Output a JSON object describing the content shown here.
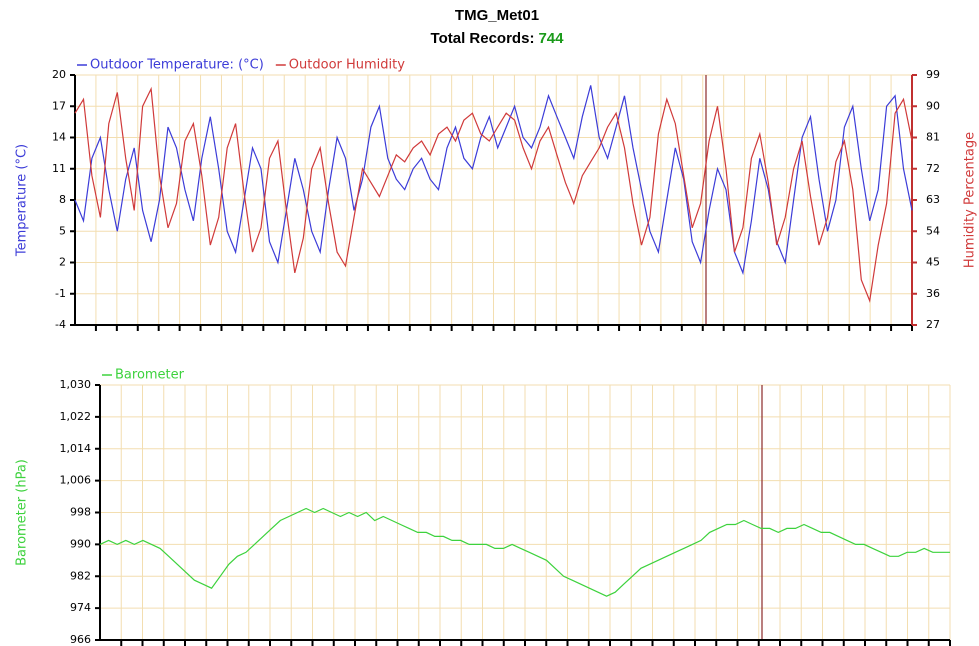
{
  "chart_data": [
    {
      "type": "line",
      "title": "TMG_Met01",
      "subtitle": "Total Records:",
      "total_records": 744,
      "y_label": "Temperature (°C)",
      "y2_label": "Humidity Percentage",
      "ylim": [
        -4,
        20
      ],
      "yticks": [
        -4,
        -1,
        2,
        5,
        8,
        11,
        14,
        17,
        20
      ],
      "y2lim": [
        27,
        99
      ],
      "y2ticks": [
        27,
        36,
        45,
        54,
        63,
        72,
        81,
        90,
        99
      ],
      "grid": true,
      "series": [
        {
          "name": "Outdoor Temperature: (°C)",
          "color": "#3c3cd8",
          "values": [
            8,
            6,
            12,
            14,
            9,
            5,
            10,
            13,
            7,
            4,
            8,
            15,
            13,
            9,
            6,
            12,
            16,
            11,
            5,
            3,
            8,
            13,
            11,
            4,
            2,
            7,
            12,
            9,
            5,
            3,
            9,
            14,
            12,
            7,
            10,
            15,
            17,
            12,
            10,
            9,
            11,
            12,
            10,
            9,
            13,
            15,
            12,
            11,
            14,
            16,
            13,
            15,
            17,
            14,
            13,
            15,
            18,
            16,
            14,
            12,
            16,
            19,
            14,
            12,
            15,
            18,
            13,
            9,
            5,
            3,
            8,
            13,
            10,
            4,
            2,
            7,
            11,
            9,
            3,
            1,
            6,
            12,
            9,
            4,
            2,
            8,
            14,
            16,
            10,
            5,
            8,
            15,
            17,
            11,
            6,
            9,
            17,
            18,
            11,
            7
          ]
        },
        {
          "name": "Outdoor Humidity",
          "color": "#d03a3a",
          "axis": "y2",
          "values": [
            88,
            92,
            70,
            58,
            85,
            94,
            75,
            60,
            90,
            95,
            70,
            55,
            62,
            80,
            85,
            70,
            50,
            58,
            78,
            85,
            65,
            48,
            55,
            75,
            80,
            60,
            42,
            52,
            72,
            78,
            62,
            48,
            44,
            58,
            72,
            68,
            64,
            70,
            76,
            74,
            78,
            80,
            76,
            82,
            84,
            80,
            86,
            88,
            82,
            80,
            84,
            88,
            86,
            78,
            72,
            80,
            84,
            76,
            68,
            62,
            70,
            74,
            78,
            84,
            88,
            78,
            62,
            50,
            58,
            82,
            92,
            85,
            70,
            55,
            62,
            80,
            90,
            72,
            48,
            55,
            75,
            82,
            68,
            50,
            58,
            72,
            80,
            64,
            50,
            58,
            74,
            80,
            66,
            40,
            34,
            50,
            62,
            88,
            92,
            80
          ]
        }
      ]
    },
    {
      "type": "line",
      "y_label": "Barometer (hPa)",
      "ylim": [
        966,
        1030
      ],
      "yticks": [
        966,
        974,
        982,
        990,
        998,
        {
          "value": 1006,
          "label": "1,006"
        },
        {
          "value": 1014,
          "label": "1,014"
        },
        {
          "value": 1022,
          "label": "1,022"
        },
        {
          "value": 1030,
          "label": "1,030"
        }
      ],
      "grid": true,
      "series": [
        {
          "name": "Barometer",
          "color": "#3dd23d",
          "values": [
            990,
            991,
            990,
            991,
            990,
            991,
            990,
            989,
            987,
            985,
            983,
            981,
            980,
            979,
            982,
            985,
            987,
            988,
            990,
            992,
            994,
            996,
            997,
            998,
            999,
            998,
            999,
            998,
            997,
            998,
            997,
            998,
            996,
            997,
            996,
            995,
            994,
            993,
            993,
            992,
            992,
            991,
            991,
            990,
            990,
            990,
            989,
            989,
            990,
            989,
            988,
            987,
            986,
            984,
            982,
            981,
            980,
            979,
            978,
            977,
            978,
            980,
            982,
            984,
            985,
            986,
            987,
            988,
            989,
            990,
            991,
            993,
            994,
            995,
            995,
            996,
            995,
            994,
            994,
            993,
            994,
            994,
            995,
            994,
            993,
            993,
            992,
            991,
            990,
            990,
            989,
            988,
            987,
            987,
            988,
            988,
            989,
            988,
            988,
            988
          ]
        }
      ]
    }
  ]
}
